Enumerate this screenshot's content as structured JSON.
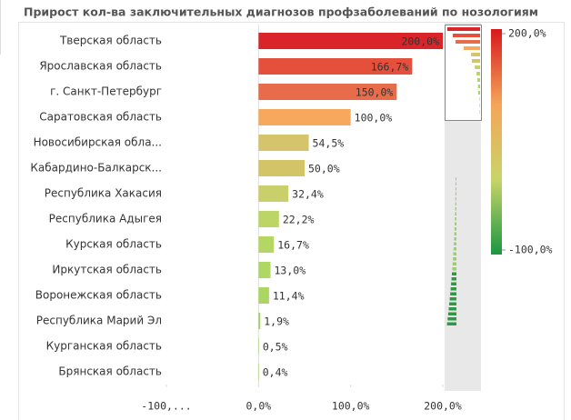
{
  "chart_data": {
    "type": "bar",
    "orientation": "horizontal",
    "title": "Прирост кол-ва заключительных диагнозов профзаболеваний по нозологиям",
    "categories": [
      "Тверская область",
      "Ярославская область",
      "г. Санкт-Петербург",
      "Саратовская область",
      "Новосибирская обла...",
      "Кабардино-Балкарск...",
      "Республика Хакасия",
      "Республика Адыгея",
      "Курская область",
      "Иркутская область",
      "Воронежская область",
      "Республика Марий Эл",
      "Курганская область",
      "Брянская область"
    ],
    "values": [
      200,
      166.7,
      150,
      100,
      54.5,
      50,
      32.4,
      22.2,
      16.7,
      13,
      11.4,
      1.9,
      0.5,
      0.4
    ],
    "value_labels": [
      "200,0%",
      "166,7%",
      "150,0%",
      "100,0%",
      "54,5%",
      "50,0%",
      "32,4%",
      "22,2%",
      "16,7%",
      "13,0%",
      "11,4%",
      "1,9%",
      "0,5%",
      "0,4%"
    ],
    "colors": [
      "#d9242a",
      "#e4503b",
      "#e86c4a",
      "#f7a85c",
      "#d6c46c",
      "#d4c468",
      "#c9cf6a",
      "#bcd666",
      "#b4d764",
      "#afd763",
      "#abd662",
      "#a1d360",
      "#9fd25f",
      "#9fd25f"
    ],
    "xlim": [
      -100,
      200
    ],
    "xticks": [
      {
        "value": -100,
        "label": "-100,..."
      },
      {
        "value": 0,
        "label": "0,0%"
      },
      {
        "value": 100,
        "label": "100,0%"
      },
      {
        "value": 200,
        "label": "200,0%"
      }
    ],
    "color_legend": {
      "colors": [
        "#d7191c",
        "#f4a55a",
        "#c8d46a",
        "#1a9641"
      ],
      "ticks": [
        {
          "value": 200,
          "label": "200,0%"
        },
        {
          "value": -100,
          "label": "-100,0%"
        }
      ]
    }
  }
}
